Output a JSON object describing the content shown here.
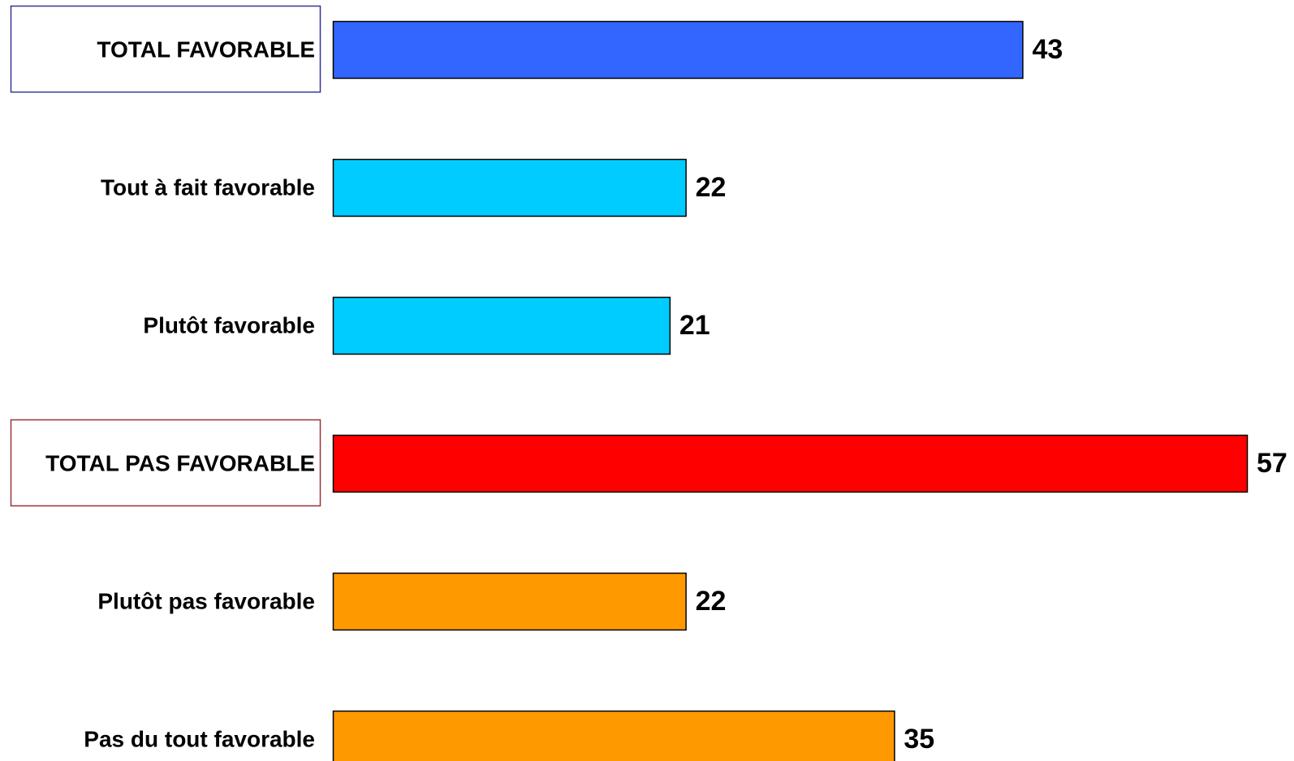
{
  "chart_data": {
    "type": "bar",
    "orientation": "horizontal",
    "categories": [
      "TOTAL FAVORABLE",
      "Tout à fait favorable",
      "Plutôt favorable",
      "TOTAL PAS FAVORABLE",
      "Plutôt pas favorable",
      "Pas du tout favorable"
    ],
    "values": [
      43,
      22,
      21,
      57,
      22,
      35
    ],
    "colors": [
      "#3366FF",
      "#00CCFF",
      "#00CCFF",
      "#FF0000",
      "#FF9900",
      "#FF9900"
    ],
    "boxed": [
      true,
      false,
      false,
      true,
      false,
      false
    ],
    "box_colors": [
      "#333399",
      "",
      "",
      "#993333",
      "",
      ""
    ],
    "xlim": [
      0,
      57
    ],
    "grid": false,
    "legend": "none",
    "title": "",
    "xlabel": "",
    "ylabel": ""
  }
}
